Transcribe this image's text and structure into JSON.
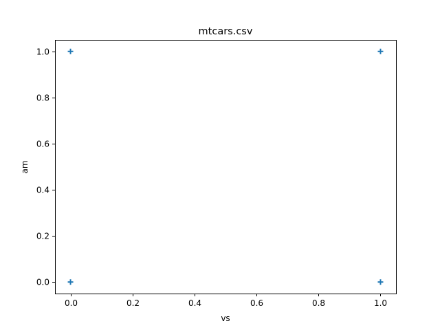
{
  "chart_data": {
    "type": "scatter",
    "title": "mtcars.csv",
    "xlabel": "vs",
    "ylabel": "am",
    "xlim": [
      -0.05,
      1.05
    ],
    "ylim": [
      -0.05,
      1.05
    ],
    "xticks": [
      0.0,
      0.2,
      0.4,
      0.6,
      0.8,
      1.0
    ],
    "yticks": [
      0.0,
      0.2,
      0.4,
      0.6,
      0.8,
      1.0
    ],
    "xtick_labels": [
      "0.0",
      "0.2",
      "0.4",
      "0.6",
      "0.8",
      "1.0"
    ],
    "ytick_labels": [
      "0.0",
      "0.2",
      "0.4",
      "0.6",
      "0.8",
      "1.0"
    ],
    "grid": false,
    "marker": "plus",
    "marker_color": "#1f77b4",
    "points": [
      {
        "x": 0,
        "y": 1
      },
      {
        "x": 1,
        "y": 1
      },
      {
        "x": 0,
        "y": 0
      },
      {
        "x": 1,
        "y": 0
      }
    ]
  }
}
